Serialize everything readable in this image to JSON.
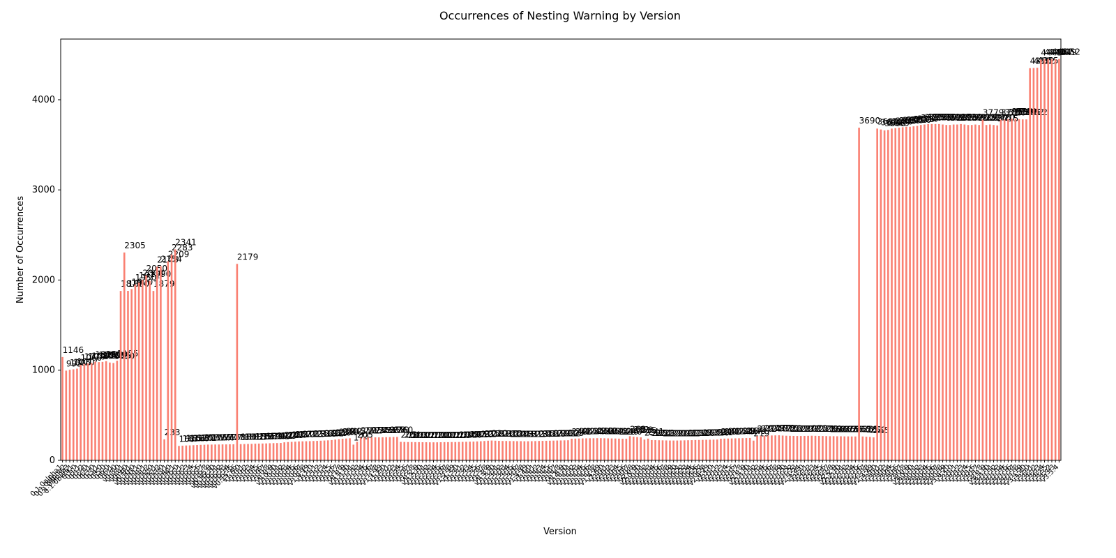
{
  "chart_data": {
    "type": "bar",
    "title": "Occurrences of Nesting Warning by Version",
    "xlabel": "Version",
    "ylabel": "Number of Occurrences",
    "color": "#fa8072",
    "categories": [
      "0.1.0alpha1",
      "0.1.0alpha2",
      "0.1.0alpha3",
      "0.1.0beta1",
      "0.1.0",
      "0.1.1",
      "0.1.2",
      "0.2.0",
      "0.2.1",
      "0.3.0",
      "0.3.1",
      "0.4.0",
      "0.5.0",
      "0.6.0",
      "0.6.1",
      "0.7.0",
      "v0.8.0",
      "v0.8.1",
      "v0.9.0",
      "v0.9.1",
      "v0.10.0",
      "v0.10.1",
      "v0.11.0",
      "v0.11.1",
      "v0.11.2",
      "v0.12.0",
      "v0.12.1",
      "v0.12.2",
      "v0.13.0",
      "v0.13.1",
      "v0.14.0",
      "v0.14.1",
      "v0.15.0",
      "v0.15.1",
      "v0.15.2",
      "v0.15.3",
      "v0.15.4",
      "v0.15.5",
      "v0.15.6",
      "v0.15.7",
      "v0.15.8",
      "v0.15.9",
      "v0.15.10",
      "v0.15.11",
      "v0.15.12",
      "v0.15.13",
      "v0.15.14",
      "v0.15.15",
      "v0.15.16",
      "v1.0.0",
      "v1.0.1",
      "v1.0.2",
      "v1.0.3",
      "v1.0.4",
      "v1.0.5",
      "v1.0.6",
      "v1.0.7",
      "v1.0.8",
      "v1.0.9",
      "v1.0.10",
      "v1.0.11",
      "v1.0.12",
      "v1.0.13",
      "v1.0.14",
      "v1.0.15",
      "v1.0.16",
      "v1.0.17",
      "v1.0.18",
      "v1.0.19",
      "v1.1.0",
      "v1.1.1",
      "v1.1.2",
      "v1.1.3",
      "v1.1.4",
      "v1.1.5",
      "v1.1.6",
      "v1.1.7",
      "v1.1.8",
      "v1.1.9",
      "v1.1.10",
      "v1.1.11",
      "v1.1.12",
      "v1.1.13",
      "v1.1.14",
      "v1.1.15",
      "v1.1.16",
      "v1.1.17",
      "v1.1.18",
      "v1.1.19",
      "v1.2.0",
      "v1.2.1",
      "v1.2.2",
      "v1.2.3",
      "v1.2.4",
      "v1.2.5",
      "v1.2.6",
      "v1.2.7",
      "v1.2.8",
      "v1.2.9",
      "v1.2.10",
      "v1.2.11",
      "v1.2.12",
      "v1.2.13",
      "v1.2.14",
      "v1.2.15",
      "v1.2.16",
      "v1.2.17",
      "v1.2.18",
      "v1.2.19",
      "v1.3.0",
      "v1.3.1",
      "v1.3.2",
      "v1.3.3",
      "v1.3.4",
      "v1.3.5",
      "v1.3.6",
      "v1.3.7",
      "v1.3.8",
      "v1.3.9",
      "v1.3.10",
      "v1.3.11",
      "v1.3.12",
      "v1.3.13",
      "v1.3.14",
      "v1.3.15",
      "v1.3.16",
      "v1.3.17",
      "v1.3.18",
      "v1.3.19",
      "v1.4.0",
      "v1.4.1",
      "v1.4.2",
      "v1.4.3",
      "v1.4.4",
      "v1.4.5",
      "v1.4.6",
      "v1.4.7",
      "v1.4.8",
      "v1.4.9",
      "v1.4.10",
      "v1.4.11",
      "v1.4.12",
      "v1.4.13",
      "v1.4.14",
      "v1.4.15",
      "v1.4.16",
      "v1.4.17",
      "v1.4.18",
      "v1.4.19",
      "v2.0.0",
      "v2.0.1",
      "v2.0.2",
      "v2.0.3",
      "v2.0.4",
      "v2.0.5",
      "v2.0.6",
      "v2.0.7",
      "v2.0.8",
      "v2.0.9",
      "v2.0.10",
      "v2.0.11",
      "v2.0.12",
      "v2.0.13",
      "v2.0.14",
      "v2.0.15",
      "v2.0.16",
      "v2.0.17",
      "v2.0.18",
      "v2.0.19",
      "v2.0.20",
      "v2.0.21",
      "v2.0.22",
      "v2.0.23",
      "v2.0.24",
      "v2.0.25",
      "v2.0.26",
      "v2.0.27",
      "v2.0.28",
      "v2.0.29",
      "v2.1.0",
      "v2.1.1",
      "v2.1.2",
      "v2.1.3",
      "v2.1.4",
      "v2.1.5",
      "v2.1.6",
      "v2.1.7",
      "v2.1.8",
      "v2.1.9",
      "v2.1.10",
      "v2.1.11",
      "v2.1.12",
      "v2.1.13",
      "v2.1.14",
      "v2.1.15",
      "v2.1.16",
      "v2.1.17",
      "v2.1.18",
      "v2.1.19",
      "v2.1.20",
      "v2.1.21",
      "v2.1.22",
      "v2.1.23",
      "v2.1.24",
      "v2.2.0",
      "v2.2.1",
      "v2.2.2",
      "v2.2.3",
      "v2.2.4",
      "v2.2.5",
      "v2.2.6",
      "v2.2.7",
      "v2.2.8",
      "v2.2.9",
      "v2.2.10",
      "v2.2.11",
      "v2.2.12",
      "v2.2.13",
      "v2.2.14",
      "v2.2.15",
      "v2.2.16",
      "v2.2.17",
      "v2.2.18",
      "v2.2.19",
      "v3.0.0",
      "v3.0.1",
      "v3.0.2",
      "v3.0.3",
      "v3.0.4",
      "v3.0.5",
      "v3.0.6",
      "v3.0.7",
      "v3.0.8",
      "v3.0.9",
      "v3.0.10",
      "v3.0.11",
      "v3.0.12",
      "v3.0.13",
      "v3.0.14",
      "v3.0.15",
      "v3.0.16",
      "v3.0.17",
      "v3.0.18",
      "v3.0.19",
      "v3.0.20",
      "v3.1.0",
      "v3.1.1",
      "v3.1.2",
      "v3.1.3",
      "v3.1.4",
      "v3.1.5",
      "v3.1.6",
      "v3.1.7",
      "v3.1.8",
      "v3.1.9",
      "v3.1.10",
      "v3.1.11",
      "v3.1.12",
      "v3.1.13",
      "v3.1.14",
      "v3.1.15",
      "v3.1.16",
      "v3.1.17",
      "v3.1.18",
      "v3.1.19",
      "v3.1.20",
      "v3.2.0",
      "v3.2.1",
      "v3.2.2",
      "v3.2.3",
      "v3.2.4",
      "v3.2.5",
      "v3.3.2",
      "v3.3.3",
      "v3.3.4"
    ],
    "values": [
      1146,
      995,
      1005,
      1010,
      1017,
      1060,
      1070,
      1075,
      1080,
      1095,
      1090,
      1092,
      1100,
      1085,
      1080,
      1105,
      1879,
      2305,
      1880,
      1900,
      1950,
      1971,
      2000,
      2050,
      1990,
      1879,
      2148,
      2154,
      233,
      2209,
      2283,
      2341,
      160,
      163,
      165,
      166,
      168,
      170,
      172,
      173,
      175,
      175,
      176,
      176,
      177,
      177,
      178,
      178,
      2179,
      180,
      181,
      182,
      183,
      185,
      186,
      187,
      188,
      190,
      191,
      192,
      193,
      200,
      203,
      205,
      207,
      210,
      211,
      212,
      213,
      215,
      216,
      218,
      220,
      222,
      225,
      230,
      235,
      240,
      242,
      245,
      174,
      205,
      250,
      252,
      253,
      254,
      255,
      255,
      256,
      257,
      258,
      259,
      260,
      205,
      204,
      203,
      203,
      202,
      202,
      201,
      201,
      200,
      200,
      200,
      201,
      202,
      202,
      203,
      203,
      204,
      205,
      206,
      207,
      208,
      210,
      212,
      215,
      218,
      220,
      218,
      216,
      215,
      215,
      214,
      214,
      213,
      213,
      212,
      212,
      213,
      214,
      215,
      216,
      217,
      218,
      219,
      220,
      221,
      222,
      223,
      240,
      241,
      242,
      243,
      244,
      245,
      245,
      246,
      246,
      245,
      244,
      243,
      242,
      241,
      240,
      240,
      268,
      262,
      258,
      255,
      230,
      241,
      225,
      224,
      223,
      222,
      221,
      220,
      220,
      220,
      221,
      222,
      223,
      224,
      225,
      226,
      227,
      228,
      229,
      230,
      231,
      240,
      241,
      242,
      243,
      244,
      245,
      246,
      247,
      248,
      219,
      270,
      272,
      274,
      275,
      276,
      277,
      278,
      275,
      273,
      272,
      271,
      270,
      270,
      271,
      272,
      273,
      272,
      271,
      270,
      269,
      268,
      268,
      267,
      267,
      266,
      266,
      265,
      265,
      3690,
      265,
      262,
      260,
      255,
      3680,
      3670,
      3660,
      3665,
      3680,
      3685,
      3690,
      3695,
      3700,
      3700,
      3705,
      3710,
      3720,
      3725,
      3730,
      3730,
      3730,
      3730,
      3725,
      3720,
      3720,
      3725,
      3725,
      3730,
      3725,
      3720,
      3720,
      3725,
      3720,
      3779,
      3720,
      3725,
      3720,
      3715,
      3780,
      3780,
      3785,
      3790,
      3790,
      3785,
      3782,
      3782,
      4350,
      4352,
      4355,
      4445,
      4448,
      4450,
      4452,
      4449,
      4452
    ],
    "ylim": [
      0,
      4673
    ],
    "yticks": [
      0,
      1000,
      2000,
      3000,
      4000
    ]
  }
}
